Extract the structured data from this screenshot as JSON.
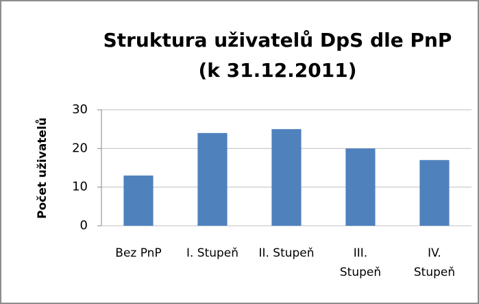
{
  "chart_data": {
    "type": "bar",
    "title": [
      "Struktura uživatelů DpS dle PnP",
      "(k 31.12.2011)"
    ],
    "ylabel": "Počet uživatelů",
    "categories": [
      "Bez PnP",
      "I. Stupeň",
      "II. Stupeň",
      "III.\nStupeň",
      "IV.\nStupeň"
    ],
    "values": [
      13,
      24,
      25,
      20,
      17
    ],
    "color": "#4f81bd",
    "ylim": [
      0,
      30
    ],
    "yticks": [
      0,
      10,
      20,
      30
    ],
    "grid": true
  }
}
